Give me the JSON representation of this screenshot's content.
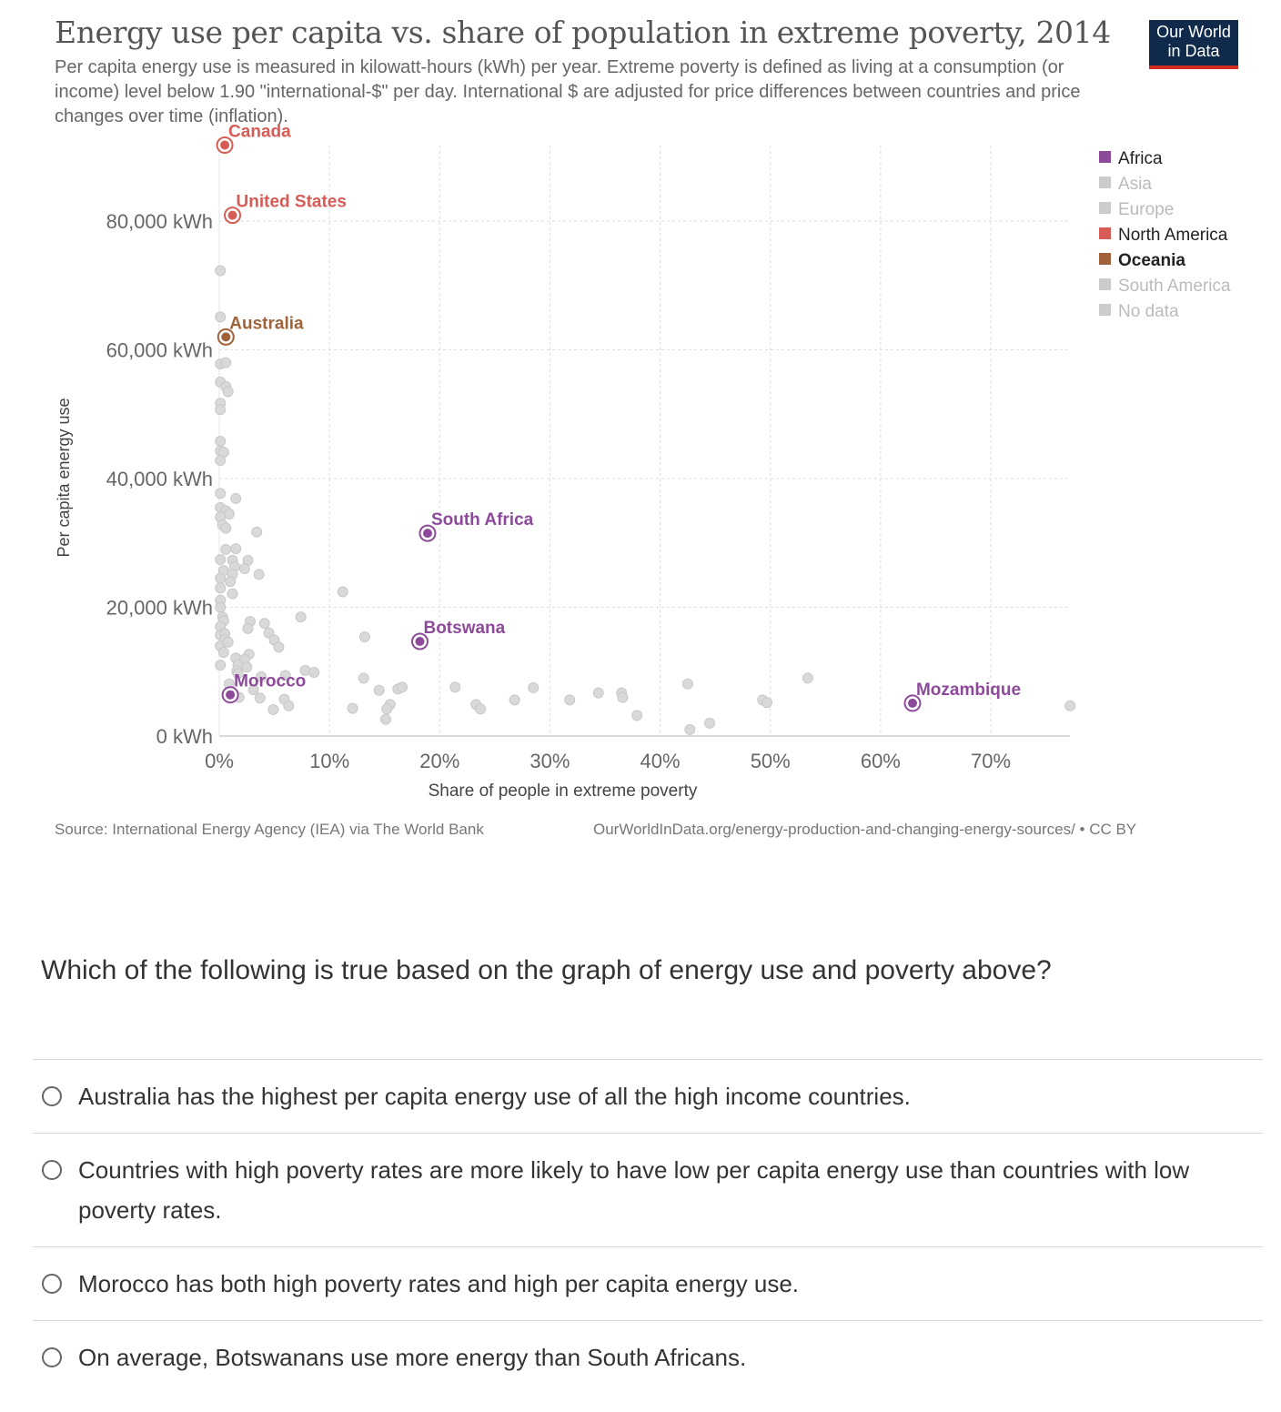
{
  "header": {
    "title": "Energy use per capita vs. share of population in extreme poverty, 2014",
    "subtitle": "Per capita energy use is measured in kilowatt-hours (kWh) per year. Extreme poverty is defined as living at a consumption (or income) level below 1.90 \"international-$\" per day. International $ are adjusted for price differences between countries and price changes over time (inflation).",
    "logo_line1": "Our World",
    "logo_line2": "in Data"
  },
  "footer": {
    "source": "Source: International Energy Agency (IEA) via The World Bank",
    "url": "OurWorldInData.org/energy-production-and-changing-energy-sources/ • CC BY"
  },
  "chart_data": {
    "type": "scatter",
    "xlabel": "Share of people in extreme poverty",
    "ylabel": "Per capita energy use",
    "xlim": [
      0,
      77
    ],
    "ylim": [
      0,
      92000
    ],
    "x_ticks": [
      {
        "value": 0,
        "label": "0%"
      },
      {
        "value": 10,
        "label": "10%"
      },
      {
        "value": 20,
        "label": "20%"
      },
      {
        "value": 30,
        "label": "30%"
      },
      {
        "value": 40,
        "label": "40%"
      },
      {
        "value": 50,
        "label": "50%"
      },
      {
        "value": 60,
        "label": "60%"
      },
      {
        "value": 70,
        "label": "70%"
      }
    ],
    "y_ticks": [
      {
        "value": 0,
        "label": "0 kWh"
      },
      {
        "value": 20000,
        "label": "20,000 kWh"
      },
      {
        "value": 40000,
        "label": "40,000 kWh"
      },
      {
        "value": 60000,
        "label": "60,000 kWh"
      },
      {
        "value": 80000,
        "label": "80,000 kWh"
      }
    ],
    "grid": true,
    "legend_position": "top-right",
    "legend": [
      {
        "name": "Africa",
        "color": "#8e4a9a",
        "active": true,
        "bold": false
      },
      {
        "name": "Asia",
        "color": "#cccccc",
        "active": false,
        "bold": false
      },
      {
        "name": "Europe",
        "color": "#cccccc",
        "active": false,
        "bold": false
      },
      {
        "name": "North America",
        "color": "#d65c55",
        "active": true,
        "bold": false
      },
      {
        "name": "Oceania",
        "color": "#a0623a",
        "active": true,
        "bold": true
      },
      {
        "name": "South America",
        "color": "#cccccc",
        "active": false,
        "bold": false
      },
      {
        "name": "No data",
        "color": "#cccccc",
        "active": false,
        "bold": false
      }
    ],
    "highlighted": [
      {
        "name": "Canada",
        "x": 0.5,
        "y": 91800,
        "color": "#d65c55"
      },
      {
        "name": "United States",
        "x": 1.2,
        "y": 80900,
        "color": "#d65c55"
      },
      {
        "name": "Australia",
        "x": 0.6,
        "y": 62000,
        "color": "#a0623a"
      },
      {
        "name": "South Africa",
        "x": 18.9,
        "y": 31500,
        "color": "#8e4a9a"
      },
      {
        "name": "Botswana",
        "x": 18.2,
        "y": 14700,
        "color": "#8e4a9a"
      },
      {
        "name": "Morocco",
        "x": 1.0,
        "y": 6400,
        "color": "#8e4a9a"
      },
      {
        "name": "Mozambique",
        "x": 62.9,
        "y": 5100,
        "color": "#8e4a9a"
      }
    ],
    "other_points": [
      [
        0.1,
        72300
      ],
      [
        0.1,
        65100
      ],
      [
        0.1,
        57800
      ],
      [
        0.6,
        58000
      ],
      [
        0.1,
        55000
      ],
      [
        0.6,
        54300
      ],
      [
        0.8,
        53500
      ],
      [
        0.1,
        51700
      ],
      [
        0.1,
        50700
      ],
      [
        0.1,
        45800
      ],
      [
        0.1,
        44300
      ],
      [
        0.4,
        44100
      ],
      [
        0.1,
        42800
      ],
      [
        0.1,
        37700
      ],
      [
        1.5,
        36900
      ],
      [
        0.1,
        35500
      ],
      [
        0.6,
        35000
      ],
      [
        0.9,
        34500
      ],
      [
        0.1,
        34000
      ],
      [
        0.3,
        32800
      ],
      [
        0.6,
        32300
      ],
      [
        3.4,
        31700
      ],
      [
        0.6,
        29000
      ],
      [
        1.5,
        29100
      ],
      [
        0.1,
        27400
      ],
      [
        1.2,
        27300
      ],
      [
        2.6,
        27300
      ],
      [
        1.4,
        26300
      ],
      [
        0.4,
        25700
      ],
      [
        2.3,
        26000
      ],
      [
        1.2,
        25100
      ],
      [
        0.1,
        24500
      ],
      [
        1.0,
        24000
      ],
      [
        3.6,
        25100
      ],
      [
        0.1,
        23000
      ],
      [
        1.2,
        22100
      ],
      [
        0.1,
        21100
      ],
      [
        0.1,
        20000
      ],
      [
        11.2,
        22400
      ],
      [
        0.3,
        18500
      ],
      [
        0.4,
        17900
      ],
      [
        2.8,
        17800
      ],
      [
        4.1,
        17500
      ],
      [
        7.4,
        18500
      ],
      [
        0.1,
        17000
      ],
      [
        2.6,
        16700
      ],
      [
        0.1,
        15700
      ],
      [
        0.5,
        15900
      ],
      [
        4.5,
        16000
      ],
      [
        0.5,
        15000
      ],
      [
        5.0,
        14900
      ],
      [
        13.2,
        15400
      ],
      [
        0.1,
        14000
      ],
      [
        0.8,
        14600
      ],
      [
        5.4,
        13800
      ],
      [
        0.4,
        13000
      ],
      [
        1.5,
        12100
      ],
      [
        2.7,
        12700
      ],
      [
        2.3,
        11900
      ],
      [
        0.1,
        11000
      ],
      [
        1.7,
        11000
      ],
      [
        2.5,
        10700
      ],
      [
        1.6,
        10100
      ],
      [
        7.8,
        10200
      ],
      [
        8.6,
        9900
      ],
      [
        1.7,
        9700
      ],
      [
        3.8,
        9200
      ],
      [
        6.0,
        9400
      ],
      [
        13.1,
        9000
      ],
      [
        0.9,
        8100
      ],
      [
        3.1,
        7200
      ],
      [
        14.5,
        7100
      ],
      [
        16.2,
        7300
      ],
      [
        16.6,
        7600
      ],
      [
        21.4,
        7600
      ],
      [
        28.5,
        7500
      ],
      [
        36.5,
        6700
      ],
      [
        34.4,
        6700
      ],
      [
        42.5,
        8100
      ],
      [
        53.4,
        9000
      ],
      [
        1.8,
        6000
      ],
      [
        3.7,
        5900
      ],
      [
        5.9,
        5700
      ],
      [
        26.8,
        5600
      ],
      [
        31.8,
        5600
      ],
      [
        36.6,
        6000
      ],
      [
        49.3,
        5600
      ],
      [
        49.7,
        5200
      ],
      [
        6.3,
        4700
      ],
      [
        15.5,
        4900
      ],
      [
        23.3,
        4900
      ],
      [
        4.9,
        4100
      ],
      [
        12.1,
        4300
      ],
      [
        15.2,
        4200
      ],
      [
        23.7,
        4200
      ],
      [
        37.9,
        3200
      ],
      [
        15.1,
        2600
      ],
      [
        44.5,
        2000
      ],
      [
        42.7,
        1000
      ],
      [
        77.2,
        4700
      ]
    ]
  },
  "question": {
    "text": "Which of the following is true based on the graph of energy use and poverty above?",
    "options": [
      {
        "label": "Australia has the highest per capita energy use of all the high income countries."
      },
      {
        "label": "Countries with high poverty rates are more likely to have low per capita energy use than countries with low poverty rates."
      },
      {
        "label": "Morocco has both high poverty rates and high per capita energy use."
      },
      {
        "label": "On average, Botswanans use more energy than South Africans."
      }
    ]
  }
}
